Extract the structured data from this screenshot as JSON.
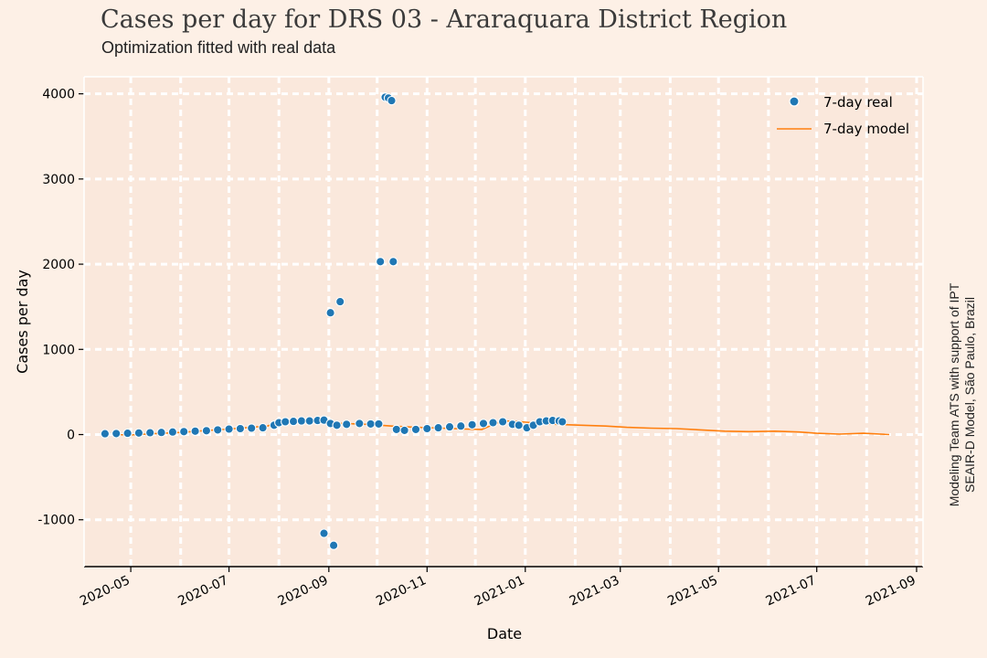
{
  "chart_data": {
    "type": "scatter",
    "title": "Cases per day for DRS 03 - Araraquara District Region",
    "subtitle": "Optimization fitted with real data",
    "xlabel": "Date",
    "ylabel": "Cases per day",
    "xlim": [
      "2020-04-02",
      "2021-09-05"
    ],
    "ylim": [
      -1550,
      4200
    ],
    "xticks": [
      "2020-05",
      "2020-07",
      "2020-09",
      "2020-11",
      "2021-01",
      "2021-03",
      "2021-05",
      "2021-07",
      "2021-09"
    ],
    "yticks": [
      4000,
      3000,
      2000,
      1000,
      0,
      -1000
    ],
    "ytick_labels": [
      "4000",
      "3000",
      "2000",
      "1000",
      "0",
      "-1000"
    ],
    "grid": true,
    "legend_position": "top-right",
    "series": [
      {
        "name": "7-day real",
        "kind": "scatter",
        "color": "#1f77b4",
        "points": [
          [
            "2020-04-15",
            10
          ],
          [
            "2020-04-22",
            12
          ],
          [
            "2020-04-29",
            15
          ],
          [
            "2020-05-06",
            18
          ],
          [
            "2020-05-13",
            22
          ],
          [
            "2020-05-20",
            25
          ],
          [
            "2020-05-27",
            30
          ],
          [
            "2020-06-03",
            35
          ],
          [
            "2020-06-10",
            40
          ],
          [
            "2020-06-17",
            45
          ],
          [
            "2020-06-24",
            55
          ],
          [
            "2020-07-01",
            65
          ],
          [
            "2020-07-08",
            70
          ],
          [
            "2020-07-15",
            75
          ],
          [
            "2020-07-22",
            80
          ],
          [
            "2020-07-29",
            110
          ],
          [
            "2020-08-01",
            140
          ],
          [
            "2020-08-05",
            150
          ],
          [
            "2020-08-10",
            155
          ],
          [
            "2020-08-15",
            160
          ],
          [
            "2020-08-20",
            160
          ],
          [
            "2020-08-25",
            165
          ],
          [
            "2020-08-29",
            170
          ],
          [
            "2020-08-29",
            -1160
          ],
          [
            "2020-09-02",
            1430
          ],
          [
            "2020-09-04",
            -1300
          ],
          [
            "2020-09-08",
            1560
          ],
          [
            "2020-09-02",
            130
          ],
          [
            "2020-09-06",
            110
          ],
          [
            "2020-09-12",
            120
          ],
          [
            "2020-09-20",
            130
          ],
          [
            "2020-09-27",
            125
          ],
          [
            "2020-10-02",
            125
          ],
          [
            "2020-10-03",
            2030
          ],
          [
            "2020-10-06",
            3960
          ],
          [
            "2020-10-08",
            3950
          ],
          [
            "2020-10-10",
            3920
          ],
          [
            "2020-10-11",
            2030
          ],
          [
            "2020-10-13",
            60
          ],
          [
            "2020-10-18",
            50
          ],
          [
            "2020-10-25",
            60
          ],
          [
            "2020-11-01",
            70
          ],
          [
            "2020-11-08",
            80
          ],
          [
            "2020-11-15",
            90
          ],
          [
            "2020-11-22",
            100
          ],
          [
            "2020-11-29",
            115
          ],
          [
            "2020-12-06",
            130
          ],
          [
            "2020-12-12",
            140
          ],
          [
            "2020-12-18",
            150
          ],
          [
            "2020-12-24",
            120
          ],
          [
            "2020-12-28",
            110
          ],
          [
            "2021-01-02",
            80
          ],
          [
            "2021-01-06",
            110
          ],
          [
            "2021-01-10",
            150
          ],
          [
            "2021-01-14",
            160
          ],
          [
            "2021-01-18",
            165
          ],
          [
            "2021-01-22",
            160
          ],
          [
            "2021-01-24",
            150
          ]
        ]
      },
      {
        "name": "7-day model",
        "kind": "line",
        "color": "#ff7f0e",
        "points": [
          [
            "2020-04-20",
            0
          ],
          [
            "2020-05-01",
            -5
          ],
          [
            "2020-05-15",
            10
          ],
          [
            "2020-06-01",
            25
          ],
          [
            "2020-06-15",
            45
          ],
          [
            "2020-07-01",
            65
          ],
          [
            "2020-07-15",
            85
          ],
          [
            "2020-07-25",
            100
          ],
          [
            "2020-08-01",
            160
          ],
          [
            "2020-08-10",
            165
          ],
          [
            "2020-08-25",
            150
          ],
          [
            "2020-09-10",
            130
          ],
          [
            "2020-09-25",
            120
          ],
          [
            "2020-10-10",
            100
          ],
          [
            "2020-10-25",
            85
          ],
          [
            "2020-11-10",
            75
          ],
          [
            "2020-11-25",
            65
          ],
          [
            "2020-12-05",
            60
          ],
          [
            "2020-12-10",
            100
          ],
          [
            "2020-12-18",
            160
          ],
          [
            "2020-12-26",
            155
          ],
          [
            "2021-01-05",
            140
          ],
          [
            "2021-01-20",
            120
          ],
          [
            "2021-02-05",
            110
          ],
          [
            "2021-02-20",
            100
          ],
          [
            "2021-03-05",
            85
          ],
          [
            "2021-03-20",
            75
          ],
          [
            "2021-04-05",
            70
          ],
          [
            "2021-04-20",
            55
          ],
          [
            "2021-05-05",
            40
          ],
          [
            "2021-05-20",
            35
          ],
          [
            "2021-06-05",
            40
          ],
          [
            "2021-06-20",
            30
          ],
          [
            "2021-07-01",
            15
          ],
          [
            "2021-07-15",
            5
          ],
          [
            "2021-07-30",
            15
          ],
          [
            "2021-08-15",
            0
          ]
        ]
      }
    ]
  },
  "credit": {
    "line1": "Modeling Team ATS with support of IPT",
    "line2": "SEAIR-D Model, São Paulo, Brazil"
  },
  "colors": {
    "background": "#fdf0e6",
    "plot_area": "#fae8dc",
    "grid": "#ffffff"
  }
}
